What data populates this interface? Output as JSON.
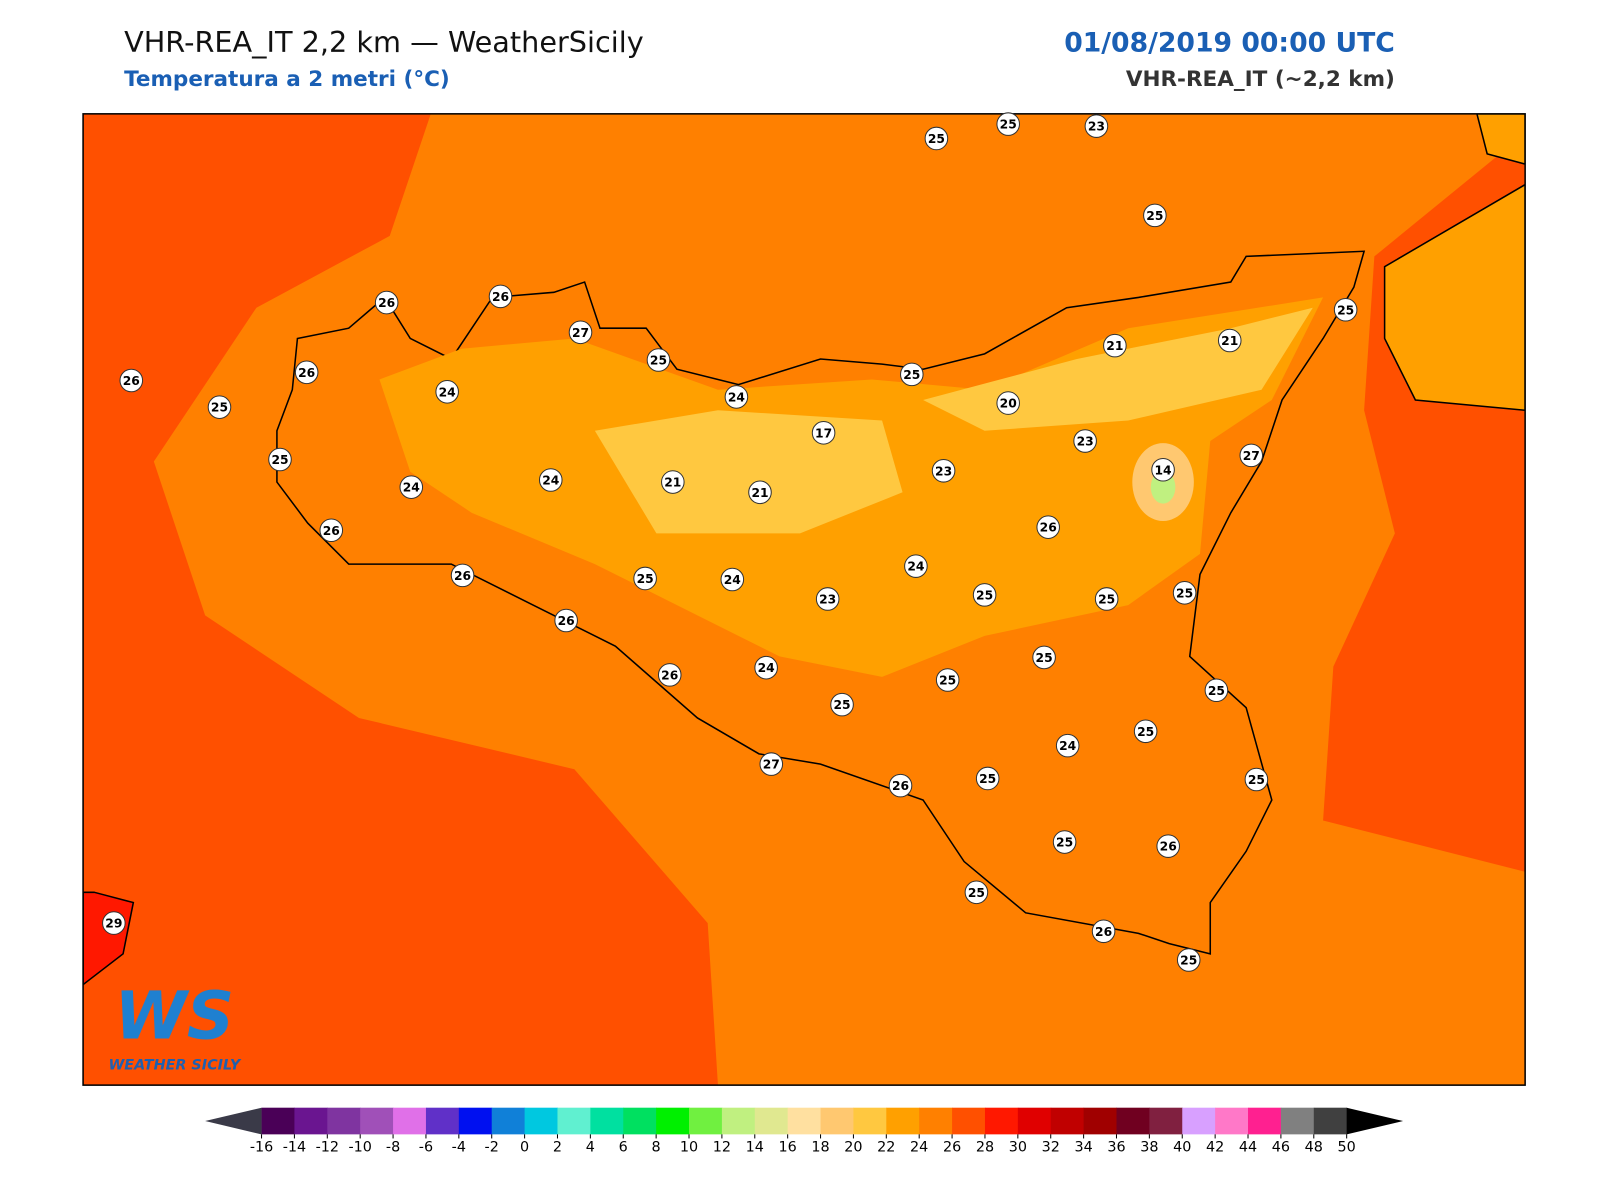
{
  "header": {
    "title": "VHR-REA_IT 2,2 km — WeatherSicily",
    "subtitle": "Temperatura a 2 metri (°C)",
    "date": "01/08/2019 00:00 UTC",
    "model": "VHR-REA_IT (~2,2 km)"
  },
  "stations": [
    25,
    25,
    23,
    25,
    26,
    26,
    27,
    25,
    26,
    26,
    25,
    24,
    24,
    25,
    21,
    21,
    25,
    20,
    17,
    23,
    23,
    14,
    27,
    25,
    24,
    24,
    21,
    21,
    26,
    26,
    26,
    25,
    24,
    23,
    24,
    25,
    25,
    25,
    26,
    25,
    26,
    24,
    25,
    25,
    25,
    25,
    24,
    27,
    26,
    25,
    25,
    25,
    26,
    25,
    26,
    25,
    29
  ],
  "colorbar": {
    "ticks": [
      -16,
      -14,
      -12,
      -10,
      -8,
      -6,
      -4,
      -2,
      0,
      2,
      4,
      6,
      8,
      10,
      12,
      14,
      16,
      18,
      20,
      22,
      24,
      26,
      28,
      30,
      32,
      34,
      36,
      38,
      40,
      42,
      44,
      46,
      48,
      50
    ],
    "colors": [
      "#4a0057",
      "#6a1590",
      "#7f34a0",
      "#a050b8",
      "#e070e8",
      "#6030c8",
      "#0010f0",
      "#1080d8",
      "#00c8e0",
      "#60f0d0",
      "#00e0a0",
      "#00e060",
      "#00f000",
      "#70f040",
      "#c0f080",
      "#e0e890",
      "#ffe0a0",
      "#ffc870",
      "#ffc840",
      "#ffa000",
      "#ff8000",
      "#ff5000",
      "#ff1800",
      "#e00000",
      "#c00000",
      "#a00000",
      "#700020",
      "#802040",
      "#d8a0ff",
      "#ff78c8",
      "#ff2090",
      "#808080",
      "#404040"
    ],
    "under": "#3a3a48",
    "over": "#000000"
  },
  "logo": {
    "mark": "WS",
    "text": "WEATHER SICILY"
  }
}
